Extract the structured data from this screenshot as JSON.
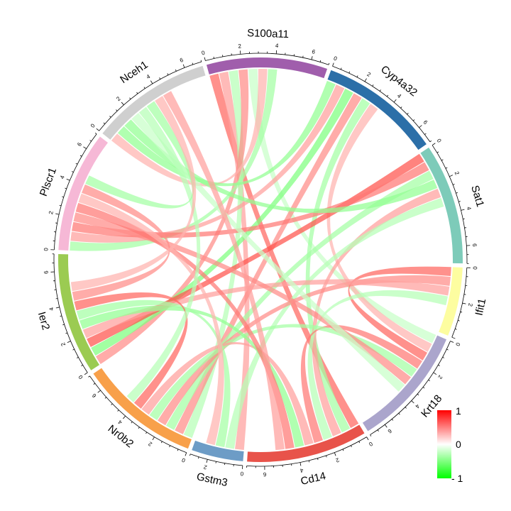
{
  "chart_data": {
    "type": "chord",
    "sectors": [
      {
        "name": "S100a11",
        "color": "#A05EAC",
        "total": 7
      },
      {
        "name": "Cyp4a32",
        "color": "#2C6FA8",
        "total": 7
      },
      {
        "name": "Sat1",
        "color": "#7DCBB9",
        "total": 7
      },
      {
        "name": "Ifit1",
        "color": "#FDFDA0",
        "total": 4
      },
      {
        "name": "Krt18",
        "color": "#ABA5CC",
        "total": 7
      },
      {
        "name": "Cd14",
        "color": "#E8534A",
        "total": 7
      },
      {
        "name": "Gstm3",
        "color": "#6D9CC6",
        "total": 3
      },
      {
        "name": "Nr0b2",
        "color": "#F8A04A",
        "total": 7
      },
      {
        "name": "Ier2",
        "color": "#9BCB52",
        "total": 7
      },
      {
        "name": "Plscr1",
        "color": "#F6B8D6",
        "total": 7
      },
      {
        "name": "Nceh1",
        "color": "#CFCFCF",
        "total": 7
      }
    ],
    "links": [
      {
        "from": "S100a11",
        "to": "Cd14",
        "value": 0.8
      },
      {
        "from": "S100a11",
        "to": "Gstm3",
        "value": 0.5
      },
      {
        "from": "S100a11",
        "to": "Nr0b2",
        "value": -0.4
      },
      {
        "from": "S100a11",
        "to": "Ier2",
        "value": 0.6
      },
      {
        "from": "S100a11",
        "to": "Krt18",
        "value": -0.3
      },
      {
        "from": "S100a11",
        "to": "Nceh1",
        "value": 0.4
      },
      {
        "from": "S100a11",
        "to": "Plscr1",
        "value": -0.5
      },
      {
        "from": "Cyp4a32",
        "to": "Nceh1",
        "value": -0.6
      },
      {
        "from": "Cyp4a32",
        "to": "Plscr1",
        "value": 0.5
      },
      {
        "from": "Cyp4a32",
        "to": "Ier2",
        "value": -0.7
      },
      {
        "from": "Cyp4a32",
        "to": "Nr0b2",
        "value": 0.6
      },
      {
        "from": "Cyp4a32",
        "to": "Cd14",
        "value": -0.5
      },
      {
        "from": "Cyp4a32",
        "to": "Krt18",
        "value": 0.4
      },
      {
        "from": "Sat1",
        "to": "Ier2",
        "value": 0.9
      },
      {
        "from": "Sat1",
        "to": "Plscr1",
        "value": 0.7
      },
      {
        "from": "Sat1",
        "to": "Nr0b2",
        "value": -0.5
      },
      {
        "from": "Sat1",
        "to": "Nceh1",
        "value": -0.6
      },
      {
        "from": "Sat1",
        "to": "Cd14",
        "value": 0.5
      },
      {
        "from": "Sat1",
        "to": "Gstm3",
        "value": -0.4
      },
      {
        "from": "Ifit1",
        "to": "Krt18",
        "value": 0.8
      },
      {
        "from": "Ifit1",
        "to": "Nr0b2",
        "value": 0.6
      },
      {
        "from": "Ifit1",
        "to": "Ier2",
        "value": 0.5
      },
      {
        "from": "Ifit1",
        "to": "Cd14",
        "value": -0.4
      },
      {
        "from": "Krt18",
        "to": "Cd14",
        "value": 0.7
      },
      {
        "from": "Krt18",
        "to": "Nr0b2",
        "value": -0.5
      },
      {
        "from": "Krt18",
        "to": "Plscr1",
        "value": 0.6
      },
      {
        "from": "Krt18",
        "to": "Nceh1",
        "value": -0.3
      },
      {
        "from": "Cd14",
        "to": "Nr0b2",
        "value": 0.5
      },
      {
        "from": "Cd14",
        "to": "Ier2",
        "value": -0.6
      },
      {
        "from": "Cd14",
        "to": "Plscr1",
        "value": 0.7
      },
      {
        "from": "Gstm3",
        "to": "Ier2",
        "value": -0.5
      },
      {
        "from": "Gstm3",
        "to": "Plscr1",
        "value": 0.4
      },
      {
        "from": "Nr0b2",
        "to": "Ier2",
        "value": 0.8
      },
      {
        "from": "Nr0b2",
        "to": "Nceh1",
        "value": -0.4
      },
      {
        "from": "Ier2",
        "to": "Plscr1",
        "value": 0.6
      },
      {
        "from": "Plscr1",
        "to": "Nceh1",
        "value": -0.5
      },
      {
        "from": "Ier2",
        "to": "Nceh1",
        "value": 0.4
      },
      {
        "from": "Cd14",
        "to": "Nceh1",
        "value": 0.5
      }
    ],
    "colorscale": {
      "min": -1,
      "mid": 0,
      "max": 1,
      "colors": {
        "low": "#00FF00",
        "mid": "#FFFFFF",
        "high": "#FF0000"
      }
    },
    "legend": {
      "position": "bottom-right",
      "labels": [
        "1",
        "0",
        "- 1"
      ]
    },
    "tick_step": 2
  }
}
